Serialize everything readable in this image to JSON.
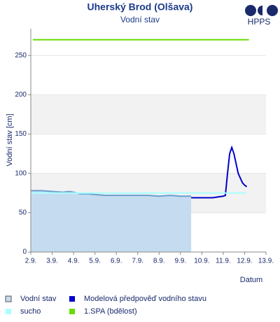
{
  "chart_data": {
    "type": "line",
    "title": "Uherský Brod (Olšava)",
    "subtitle": "Vodní stav",
    "logo": "HPPS",
    "x_label": "Datum",
    "y_label": "Vodní stav [cm]",
    "xlim": [
      2,
      13
    ],
    "xticks": [
      {
        "value": 2,
        "label": "2.9."
      },
      {
        "value": 3,
        "label": "3.9."
      },
      {
        "value": 4,
        "label": "4.9."
      },
      {
        "value": 5,
        "label": "5.9."
      },
      {
        "value": 6,
        "label": "6.9."
      },
      {
        "value": 7,
        "label": "7.9."
      },
      {
        "value": 8,
        "label": "8.9."
      },
      {
        "value": 9,
        "label": "9.9."
      },
      {
        "value": 10,
        "label": "10.9."
      },
      {
        "value": 11,
        "label": "11.9."
      },
      {
        "value": 12,
        "label": "12.9."
      },
      {
        "value": 13,
        "label": "13.9."
      }
    ],
    "ylim": [
      0,
      284
    ],
    "yticks": [
      0,
      50,
      100,
      150,
      200,
      250
    ],
    "series": [
      {
        "name": "Vodní stav",
        "color": "#c5dcf0",
        "line_color": "#6b9fcf",
        "area": true,
        "x": [
          2,
          2.5,
          3,
          3.5,
          3.8,
          4,
          4.3,
          4.7,
          5,
          5.5,
          6,
          6.5,
          7,
          7.5,
          8,
          8.5,
          9,
          9.5
        ],
        "values": [
          78,
          78,
          77,
          76,
          77,
          76,
          74,
          74,
          73,
          72,
          72,
          72,
          72,
          72,
          71,
          72,
          71,
          71
        ]
      },
      {
        "name": "Modelová předpověď vodního stavu",
        "color": "#0000cc",
        "x": [
          9.5,
          10,
          10.5,
          11,
          11.1,
          11.2,
          11.3,
          11.4,
          11.5,
          11.7,
          11.9,
          12,
          12.1
        ],
        "values": [
          69,
          69,
          69,
          71,
          72,
          100,
          125,
          133,
          125,
          100,
          88,
          85,
          83
        ]
      },
      {
        "name": "sucho",
        "color": "#aaffff",
        "x": [
          2,
          12.1
        ],
        "values": [
          75,
          75
        ]
      },
      {
        "name": "1.SPA (bdělost)",
        "color": "#66dd00",
        "x": [
          2.1,
          12.2
        ],
        "values": [
          270,
          270
        ]
      }
    ]
  }
}
